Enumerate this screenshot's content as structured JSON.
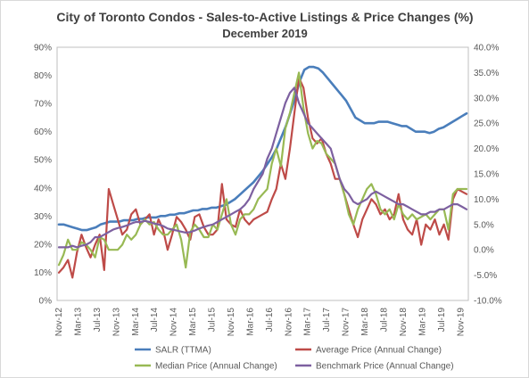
{
  "chart_data": {
    "type": "line",
    "title": "City of Toronto Condos - Sales-to-Active Listings & Price Changes (%)",
    "subtitle": "December 2019",
    "x_labels": [
      "Nov-12",
      "Mar-13",
      "Jul-13",
      "Nov-13",
      "Mar-14",
      "Jul-14",
      "Nov-14",
      "Mar-15",
      "Jul-15",
      "Nov-15",
      "Mar-16",
      "Jul-16",
      "Nov-16",
      "Mar-17",
      "Jul-17",
      "Nov-17",
      "Mar-18",
      "Jul-18",
      "Nov-18",
      "Mar-19",
      "Jul-19",
      "Nov-19"
    ],
    "y_left": {
      "min": 0,
      "max": 90,
      "step": 10,
      "tick_labels": [
        "0%",
        "10%",
        "20%",
        "30%",
        "40%",
        "50%",
        "60%",
        "70%",
        "80%",
        "90%"
      ]
    },
    "y_right": {
      "min": -10,
      "max": 40,
      "step": 5,
      "tick_labels": [
        "-10.0%",
        "-5.0%",
        "0.0%",
        "5.0%",
        "10.0%",
        "15.0%",
        "20.0%",
        "25.0%",
        "30.0%",
        "35.0%",
        "40.0%"
      ]
    },
    "grid": false,
    "legend_position": "bottom",
    "series": [
      {
        "name": "SALR (TTMA)",
        "axis": "left",
        "color": "#4a7ebb",
        "values": [
          27,
          27,
          26.5,
          26,
          25.5,
          25,
          25,
          25.5,
          26,
          27,
          27.5,
          28,
          28,
          28,
          28.5,
          28.5,
          28.5,
          29,
          29,
          29.5,
          29.5,
          29.5,
          30,
          30,
          30.5,
          30.5,
          31,
          31,
          31.5,
          32,
          32,
          32.5,
          32.5,
          33,
          33,
          33.5,
          34,
          35,
          36,
          37.5,
          39,
          40.5,
          42,
          44,
          46,
          48.5,
          51,
          54,
          58,
          62,
          67,
          72,
          78,
          82,
          83,
          83,
          82.5,
          81,
          79,
          77,
          75,
          73,
          71,
          68,
          65,
          64,
          63,
          63,
          63,
          63.5,
          63.5,
          63.5,
          63,
          62.5,
          62,
          62,
          61,
          60,
          60,
          60,
          59.5,
          60,
          61,
          61.5,
          62.5,
          63.5,
          64.5,
          65.5,
          66.5
        ]
      },
      {
        "name": "Average Price (Annual Change)",
        "axis": "right",
        "color": "#be4b48",
        "values": [
          -4.5,
          -3.5,
          -2,
          -5.5,
          -0.5,
          3,
          0.5,
          -1.5,
          1,
          3,
          -4,
          12,
          9,
          6,
          3,
          4,
          7,
          8,
          5,
          6,
          7,
          3,
          6,
          4,
          0,
          3,
          6.5,
          5.5,
          4,
          2,
          6.5,
          7,
          4.5,
          3,
          3,
          4,
          13,
          6,
          5,
          4.5,
          8,
          6,
          5,
          6,
          6.5,
          7,
          7.5,
          10,
          12,
          17,
          14,
          20,
          27,
          34,
          32,
          26,
          22,
          21,
          22,
          19,
          17,
          14,
          14,
          11,
          8,
          5,
          2.5,
          6,
          8,
          10,
          9,
          7,
          8,
          6,
          7,
          11,
          6,
          4,
          3,
          6,
          1,
          5,
          4,
          6,
          3,
          5,
          2,
          10,
          12,
          11.5,
          11
        ]
      },
      {
        "name": "Median Price (Annual Change)",
        "axis": "right",
        "color": "#98b954",
        "values": [
          -3,
          -1,
          2,
          0,
          0,
          1.5,
          1,
          0,
          -1.5,
          2.5,
          2,
          0,
          0,
          0,
          1,
          3,
          2,
          3,
          5,
          6,
          5,
          5.5,
          4,
          3,
          3,
          4,
          5,
          2,
          -3.5,
          3.5,
          5,
          4,
          2.5,
          2.5,
          5,
          4,
          7,
          10,
          5,
          3,
          6,
          7,
          7,
          8,
          10,
          11,
          12,
          17,
          20,
          16.5,
          24,
          27,
          31,
          35,
          28,
          23,
          20,
          21.5,
          21,
          19,
          18,
          17,
          14,
          11,
          7,
          5,
          8,
          10,
          12,
          13,
          11,
          8,
          7,
          8,
          6,
          9,
          7,
          6,
          7,
          6,
          6.5,
          7,
          6,
          7,
          8,
          8,
          4,
          11,
          12,
          12,
          12
        ]
      },
      {
        "name": "Benchmark Price (Annual Change)",
        "axis": "right",
        "color": "#7d60a0",
        "values": [
          0.5,
          0.5,
          0.5,
          0.8,
          0.5,
          0.8,
          1,
          1.5,
          2.5,
          2.5,
          3,
          3.5,
          4,
          4.3,
          4.5,
          4.8,
          5.2,
          5.5,
          5.5,
          5.7,
          5.5,
          5.2,
          5,
          4.7,
          4.2,
          4,
          3.8,
          3.6,
          3.4,
          3.5,
          3.8,
          4.2,
          4.5,
          4.8,
          5,
          5.5,
          6,
          6.5,
          7,
          7.5,
          8,
          8.8,
          10,
          12,
          13.5,
          15,
          18,
          20,
          23,
          26,
          29,
          31,
          32,
          29,
          27,
          25,
          24,
          23,
          22,
          21,
          20,
          17,
          14,
          12,
          11,
          9.5,
          9,
          9.5,
          10,
          11,
          11.5,
          11,
          10.5,
          10,
          9.5,
          9,
          9,
          8.5,
          8,
          7.5,
          7,
          7,
          7.5,
          7.5,
          8,
          8,
          8.5,
          9,
          9,
          8.5,
          8
        ]
      }
    ]
  }
}
